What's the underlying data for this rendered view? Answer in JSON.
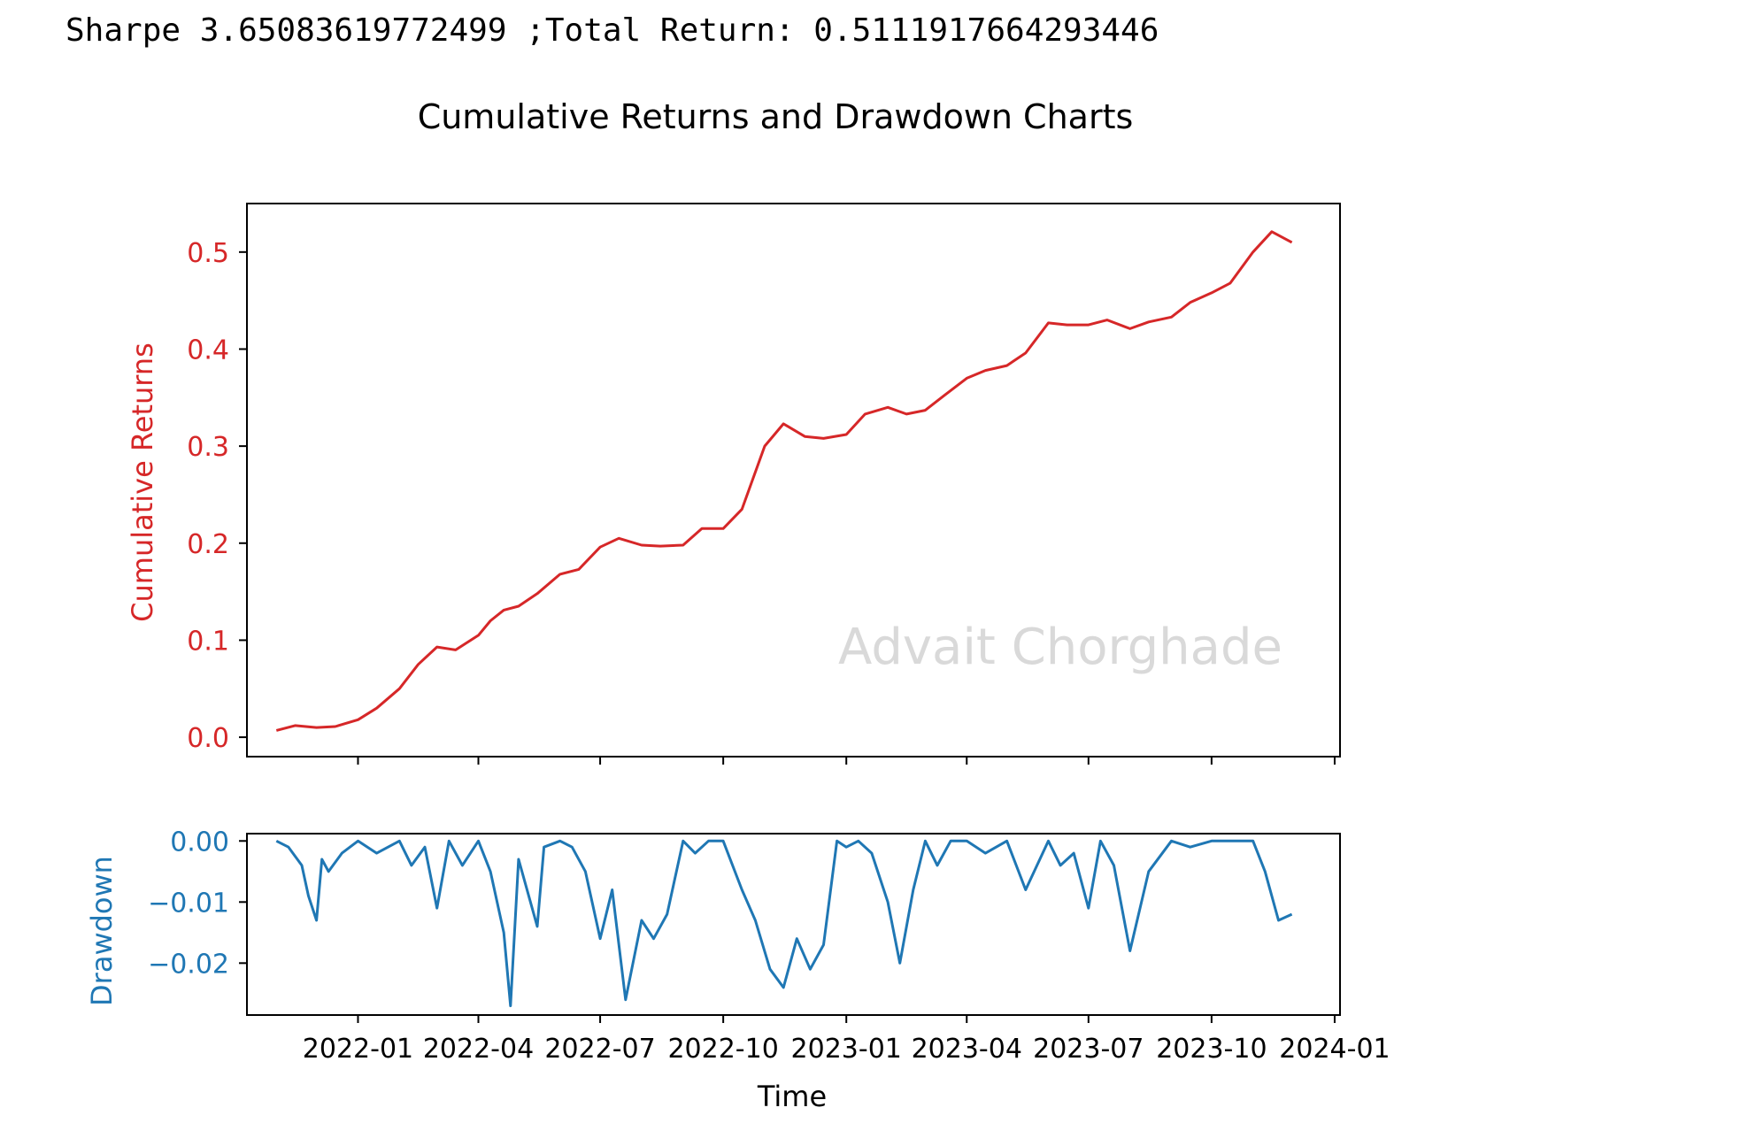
{
  "console": {
    "output_line": "Sharpe 3.65083619772499 ;Total Return: 0.5111917664293446"
  },
  "figure": {
    "suptitle": "Cumulative Returns and Drawdown Charts",
    "watermark": "Advait Chorghade"
  },
  "colors": {
    "cumulative": "#d62728",
    "drawdown": "#1f77b4",
    "axes": "#000000",
    "watermark": "#d9d9d9"
  },
  "chart_data": [
    {
      "type": "line",
      "panel": "top",
      "title": "",
      "xlabel": "",
      "ylabel": "Cumulative Returns",
      "ylim": [
        -0.02,
        0.55
      ],
      "xlim": [
        "2021-10-10",
        "2024-01-05"
      ],
      "yticks": [
        0.0,
        0.1,
        0.2,
        0.3,
        0.4,
        0.5
      ],
      "ytick_labels": [
        "0.0",
        "0.1",
        "0.2",
        "0.3",
        "0.4",
        "0.5"
      ],
      "xticks": [
        "2022-01-01",
        "2022-04-01",
        "2022-07-01",
        "2022-10-01",
        "2023-01-01",
        "2023-04-01",
        "2023-07-01",
        "2023-10-01",
        "2024-01-01"
      ],
      "show_xtick_labels": false,
      "grid": false,
      "series": [
        {
          "x": [
            "2021-11-01",
            "2021-11-15",
            "2021-12-01",
            "2021-12-15",
            "2022-01-01",
            "2022-01-15",
            "2022-02-01",
            "2022-02-15",
            "2022-03-01",
            "2022-03-15",
            "2022-04-01",
            "2022-04-10",
            "2022-04-20",
            "2022-05-01",
            "2022-05-15",
            "2022-06-01",
            "2022-06-15",
            "2022-07-01",
            "2022-07-15",
            "2022-08-01",
            "2022-08-15",
            "2022-09-01",
            "2022-09-15",
            "2022-10-01",
            "2022-10-15",
            "2022-11-01",
            "2022-11-15",
            "2022-12-01",
            "2022-12-15",
            "2023-01-01",
            "2023-01-15",
            "2023-02-01",
            "2023-02-15",
            "2023-03-01",
            "2023-03-15",
            "2023-04-01",
            "2023-04-15",
            "2023-05-01",
            "2023-05-15",
            "2023-06-01",
            "2023-06-15",
            "2023-07-01",
            "2023-07-15",
            "2023-08-01",
            "2023-08-15",
            "2023-09-01",
            "2023-09-15",
            "2023-10-01",
            "2023-10-15",
            "2023-11-01",
            "2023-11-15",
            "2023-11-30"
          ],
          "values": [
            0.007,
            0.012,
            0.01,
            0.011,
            0.018,
            0.03,
            0.05,
            0.075,
            0.093,
            0.09,
            0.105,
            0.12,
            0.131,
            0.135,
            0.148,
            0.168,
            0.173,
            0.196,
            0.205,
            0.198,
            0.197,
            0.198,
            0.215,
            0.215,
            0.235,
            0.3,
            0.323,
            0.31,
            0.308,
            0.312,
            0.333,
            0.34,
            0.333,
            0.337,
            0.352,
            0.37,
            0.378,
            0.383,
            0.396,
            0.427,
            0.425,
            0.425,
            0.43,
            0.421,
            0.428,
            0.433,
            0.448,
            0.458,
            0.468,
            0.5,
            0.521,
            0.51
          ]
        }
      ]
    },
    {
      "type": "line",
      "panel": "bottom",
      "title": "",
      "xlabel": "Time",
      "ylabel": "Drawdown",
      "ylim": [
        -0.0285,
        0.0012
      ],
      "xlim": [
        "2021-10-10",
        "2024-01-05"
      ],
      "yticks": [
        0.0,
        -0.01,
        -0.02
      ],
      "ytick_labels": [
        "0.00",
        "−0.01",
        "−0.02"
      ],
      "xticks": [
        "2022-01-01",
        "2022-04-01",
        "2022-07-01",
        "2022-10-01",
        "2023-01-01",
        "2023-04-01",
        "2023-07-01",
        "2023-10-01",
        "2024-01-01"
      ],
      "xtick_labels": [
        "2022-01",
        "2022-04",
        "2022-07",
        "2022-10",
        "2023-01",
        "2023-04",
        "2023-07",
        "2023-10",
        "2024-01"
      ],
      "grid": false,
      "series": [
        {
          "x": [
            "2021-11-01",
            "2021-11-10",
            "2021-11-20",
            "2021-11-25",
            "2021-12-01",
            "2021-12-05",
            "2021-12-10",
            "2021-12-20",
            "2022-01-01",
            "2022-01-15",
            "2022-02-01",
            "2022-02-10",
            "2022-02-20",
            "2022-03-01",
            "2022-03-10",
            "2022-03-20",
            "2022-04-01",
            "2022-04-10",
            "2022-04-20",
            "2022-04-25",
            "2022-05-01",
            "2022-05-15",
            "2022-05-20",
            "2022-06-01",
            "2022-06-10",
            "2022-06-20",
            "2022-07-01",
            "2022-07-10",
            "2022-07-20",
            "2022-08-01",
            "2022-08-10",
            "2022-08-20",
            "2022-09-01",
            "2022-09-10",
            "2022-09-20",
            "2022-10-01",
            "2022-10-15",
            "2022-10-25",
            "2022-11-05",
            "2022-11-15",
            "2022-11-25",
            "2022-12-05",
            "2022-12-15",
            "2022-12-25",
            "2023-01-01",
            "2023-01-10",
            "2023-01-20",
            "2023-02-01",
            "2023-02-10",
            "2023-02-20",
            "2023-03-01",
            "2023-03-10",
            "2023-03-20",
            "2023-04-01",
            "2023-04-15",
            "2023-05-01",
            "2023-05-15",
            "2023-06-01",
            "2023-06-10",
            "2023-06-20",
            "2023-07-01",
            "2023-07-10",
            "2023-07-20",
            "2023-08-01",
            "2023-08-15",
            "2023-09-01",
            "2023-09-15",
            "2023-10-01",
            "2023-10-15",
            "2023-11-01",
            "2023-11-10",
            "2023-11-20",
            "2023-11-30"
          ],
          "values": [
            0.0,
            -0.001,
            -0.004,
            -0.009,
            -0.013,
            -0.003,
            -0.005,
            -0.002,
            0.0,
            -0.002,
            0.0,
            -0.004,
            -0.001,
            -0.011,
            0.0,
            -0.004,
            0.0,
            -0.005,
            -0.015,
            -0.027,
            -0.003,
            -0.014,
            -0.001,
            0.0,
            -0.001,
            -0.005,
            -0.016,
            -0.008,
            -0.026,
            -0.013,
            -0.016,
            -0.012,
            0.0,
            -0.002,
            0.0,
            0.0,
            -0.008,
            -0.013,
            -0.021,
            -0.024,
            -0.016,
            -0.021,
            -0.017,
            0.0,
            -0.001,
            0.0,
            -0.002,
            -0.01,
            -0.02,
            -0.008,
            0.0,
            -0.004,
            0.0,
            0.0,
            -0.002,
            0.0,
            -0.008,
            0.0,
            -0.004,
            -0.002,
            -0.011,
            0.0,
            -0.004,
            -0.018,
            -0.005,
            0.0,
            -0.001,
            0.0,
            0.0,
            0.0,
            -0.005,
            -0.013,
            -0.012
          ]
        }
      ]
    }
  ]
}
